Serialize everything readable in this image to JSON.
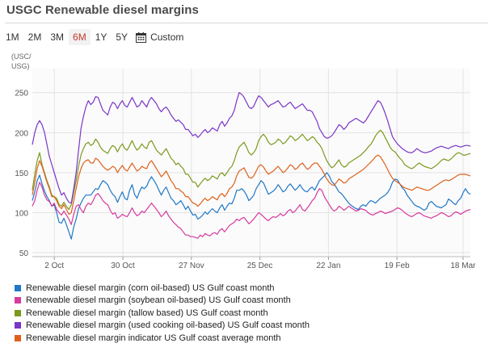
{
  "header": {
    "title": "USGC Renewable diesel margins"
  },
  "range_buttons": [
    "1M",
    "2M",
    "3M",
    "6M",
    "1Y",
    "5Y"
  ],
  "active_range": "6M",
  "custom_label": "Custom",
  "icons": {
    "custom": "calendar-icon"
  },
  "chart_data": {
    "type": "line",
    "title": "USGC Renewable diesel margins",
    "ylabel": "(USC/\nUSG)",
    "ylim": [
      45,
      280
    ],
    "yticks": [
      50,
      100,
      150,
      200,
      250
    ],
    "xlim": [
      0,
      179
    ],
    "xticks": [
      {
        "label": "2 Oct",
        "pos": 9
      },
      {
        "label": "30 Oct",
        "pos": 37
      },
      {
        "label": "27 Nov",
        "pos": 65
      },
      {
        "label": "25 Dec",
        "pos": 93
      },
      {
        "label": "22 Jan",
        "pos": 121
      },
      {
        "label": "19 Feb",
        "pos": 149
      },
      {
        "label": "18 Mar",
        "pos": 176
      }
    ],
    "grid": true,
    "legend_position": "bottom-left",
    "series": [
      {
        "name": "Renewable diesel margin (corn oil-based) US Gulf coast month",
        "color": "#1f78c8",
        "values": [
          115,
          126,
          140,
          147,
          136,
          127,
          120,
          115,
          108,
          110,
          100,
          88,
          87,
          93,
          85,
          76,
          67,
          82,
          92,
          105,
          112,
          118,
          122,
          122,
          122,
          126,
          130,
          129,
          135,
          140,
          138,
          135,
          128,
          123,
          120,
          113,
          120,
          126,
          118,
          116,
          128,
          135,
          123,
          118,
          126,
          132,
          130,
          133,
          140,
          145,
          140,
          135,
          128,
          122,
          128,
          132,
          125,
          118,
          115,
          110,
          112,
          115,
          110,
          104,
          108,
          102,
          97,
          98,
          92,
          94,
          97,
          101,
          98,
          102,
          105,
          102,
          100,
          106,
          110,
          103,
          108,
          112,
          111,
          118,
          128,
          128,
          130,
          127,
          122,
          115,
          118,
          122,
          130,
          135,
          140,
          137,
          130,
          123,
          125,
          127,
          130,
          135,
          131,
          126,
          128,
          133,
          136,
          132,
          128,
          131,
          135,
          130,
          127,
          126,
          130,
          132,
          128,
          134,
          140,
          143,
          146,
          150,
          146,
          139,
          136,
          131,
          126,
          124,
          120,
          116,
          112,
          109,
          107,
          105,
          104,
          108,
          110,
          108,
          112,
          115,
          114,
          112,
          115,
          118,
          120,
          122,
          125,
          130,
          138,
          142,
          141,
          136,
          131,
          128,
          122,
          118,
          114,
          110,
          108,
          107,
          105,
          103,
          105,
          112,
          114,
          111,
          108,
          107,
          106,
          108,
          110,
          117,
          115,
          112,
          110,
          115,
          118,
          125,
          130,
          125,
          123
        ]
      },
      {
        "name": "Renewable diesel margin (soybean oil-based) US Gulf coast month",
        "color": "#d63a9e",
        "values": [
          108,
          115,
          128,
          138,
          132,
          122,
          116,
          114,
          108,
          112,
          104,
          100,
          97,
          102,
          97,
          92,
          85,
          98,
          108,
          110,
          104,
          100,
          108,
          112,
          110,
          115,
          122,
          124,
          120,
          115,
          112,
          110,
          103,
          98,
          100,
          93,
          95,
          98,
          96,
          95,
          100,
          106,
          100,
          96,
          98,
          102,
          100,
          104,
          108,
          112,
          108,
          104,
          100,
          95,
          98,
          102,
          96,
          92,
          88,
          85,
          82,
          80,
          76,
          72,
          72,
          70,
          70,
          69,
          68,
          72,
          70,
          74,
          72,
          71,
          74,
          75,
          73,
          78,
          80,
          76,
          80,
          84,
          86,
          88,
          92,
          90,
          93,
          94,
          90,
          86,
          89,
          92,
          96,
          100,
          98,
          95,
          92,
          90,
          93,
          95,
          94,
          96,
          99,
          96,
          98,
          102,
          104,
          100,
          102,
          106,
          110,
          104,
          102,
          106,
          110,
          115,
          118,
          125,
          130,
          128,
          120,
          115,
          110,
          105,
          102,
          104,
          108,
          106,
          103,
          105,
          108,
          106,
          104,
          102,
          103,
          105,
          104,
          103,
          100,
          98,
          97,
          99,
          100,
          102,
          101,
          99,
          100,
          101,
          102,
          104,
          106,
          105,
          103,
          100,
          98,
          96,
          95,
          97,
          99,
          100,
          98,
          96,
          95,
          94,
          93,
          95,
          96,
          98,
          100,
          99,
          97,
          95,
          96,
          99,
          101,
          100,
          98,
          100,
          102,
          103,
          104
        ]
      },
      {
        "name": "Renewable diesel margin (tallow based) US Gulf coast month",
        "color": "#7b9a1e",
        "values": [
          128,
          148,
          165,
          175,
          160,
          150,
          140,
          132,
          122,
          120,
          118,
          110,
          108,
          113,
          108,
          104,
          110,
          125,
          140,
          158,
          172,
          180,
          186,
          188,
          184,
          186,
          192,
          188,
          182,
          178,
          176,
          174,
          180,
          184,
          182,
          176,
          182,
          186,
          180,
          178,
          184,
          190,
          183,
          178,
          181,
          186,
          182,
          180,
          188,
          190,
          184,
          178,
          175,
          172,
          176,
          180,
          174,
          168,
          165,
          160,
          162,
          158,
          155,
          148,
          148,
          143,
          138,
          138,
          132,
          136,
          140,
          143,
          140,
          142,
          146,
          144,
          142,
          148,
          150,
          146,
          150,
          155,
          158,
          165,
          175,
          182,
          185,
          188,
          182,
          175,
          172,
          175,
          180,
          190,
          195,
          198,
          194,
          188,
          185,
          186,
          188,
          192,
          190,
          186,
          188,
          192,
          196,
          194,
          190,
          192,
          195,
          198,
          194,
          190,
          192,
          195,
          193,
          188,
          185,
          180,
          172,
          165,
          160,
          156,
          158,
          162,
          166,
          160,
          157,
          158,
          162,
          164,
          166,
          168,
          170,
          172,
          175,
          178,
          182,
          185,
          190,
          196,
          200,
          203,
          200,
          194,
          188,
          182,
          178,
          176,
          172,
          168,
          165,
          160,
          158,
          156,
          155,
          157,
          160,
          162,
          160,
          158,
          157,
          156,
          155,
          157,
          159,
          162,
          165,
          167,
          166,
          165,
          167,
          170,
          173,
          175,
          174,
          172,
          172,
          173,
          174
        ]
      },
      {
        "name": "Renewable diesel margin (used cooking oil-based) US Gulf coast month",
        "color": "#7a35c8",
        "values": [
          185,
          200,
          210,
          215,
          210,
          200,
          185,
          170,
          160,
          150,
          140,
          130,
          122,
          125,
          118,
          113,
          112,
          130,
          150,
          178,
          205,
          220,
          232,
          240,
          235,
          238,
          245,
          244,
          236,
          228,
          225,
          222,
          232,
          238,
          236,
          230,
          236,
          240,
          234,
          232,
          238,
          244,
          238,
          232,
          234,
          240,
          236,
          232,
          240,
          244,
          240,
          236,
          230,
          226,
          230,
          232,
          228,
          222,
          218,
          214,
          216,
          213,
          210,
          204,
          204,
          200,
          196,
          198,
          194,
          197,
          201,
          204,
          200,
          202,
          206,
          204,
          202,
          210,
          214,
          208,
          212,
          218,
          221,
          228,
          240,
          250,
          248,
          244,
          238,
          232,
          230,
          233,
          240,
          246,
          244,
          240,
          236,
          232,
          235,
          236,
          238,
          240,
          236,
          232,
          233,
          236,
          238,
          234,
          230,
          232,
          234,
          236,
          232,
          228,
          228,
          226,
          220,
          214,
          205,
          200,
          195,
          193,
          194,
          196,
          200,
          205,
          210,
          208,
          204,
          207,
          212,
          214,
          216,
          218,
          216,
          214,
          212,
          215,
          220,
          225,
          230,
          235,
          240,
          238,
          232,
          224,
          215,
          205,
          195,
          190,
          186,
          183,
          180,
          178,
          176,
          175,
          175,
          177,
          180,
          178,
          176,
          175,
          175,
          176,
          177,
          179,
          181,
          182,
          183,
          182,
          181,
          180,
          182,
          183,
          184,
          183,
          182,
          183,
          184,
          184,
          183
        ]
      },
      {
        "name": "Renewable diesel margin indicator US Gulf coast average month",
        "color": "#e0601a",
        "values": [
          122,
          138,
          155,
          165,
          158,
          148,
          138,
          130,
          120,
          120,
          115,
          108,
          105,
          110,
          104,
          98,
          100,
          115,
          130,
          145,
          155,
          162,
          165,
          166,
          162,
          162,
          168,
          166,
          162,
          158,
          155,
          153,
          155,
          158,
          156,
          150,
          155,
          159,
          154,
          152,
          157,
          162,
          157,
          152,
          154,
          158,
          156,
          155,
          162,
          165,
          160,
          155,
          150,
          145,
          148,
          152,
          146,
          140,
          136,
          130,
          130,
          127,
          125,
          120,
          120,
          116,
          112,
          111,
          108,
          111,
          115,
          118,
          115,
          117,
          120,
          118,
          116,
          122,
          124,
          120,
          124,
          130,
          132,
          137,
          146,
          152,
          154,
          156,
          150,
          144,
          143,
          146,
          152,
          158,
          160,
          157,
          152,
          148,
          150,
          152,
          155,
          158,
          154,
          150,
          152,
          156,
          160,
          158,
          154,
          156,
          160,
          162,
          158,
          154,
          156,
          160,
          162,
          162,
          158,
          154,
          148,
          142,
          138,
          135,
          134,
          138,
          142,
          140,
          137,
          138,
          142,
          144,
          146,
          148,
          150,
          152,
          154,
          157,
          160,
          163,
          166,
          170,
          172,
          170,
          165,
          160,
          154,
          148,
          143,
          140,
          138,
          136,
          133,
          131,
          130,
          129,
          128,
          130,
          132,
          131,
          130,
          129,
          128,
          128,
          130,
          132,
          134,
          136,
          138,
          140,
          141,
          140,
          141,
          143,
          145,
          147,
          148,
          148,
          148,
          147,
          146
        ]
      }
    ]
  }
}
